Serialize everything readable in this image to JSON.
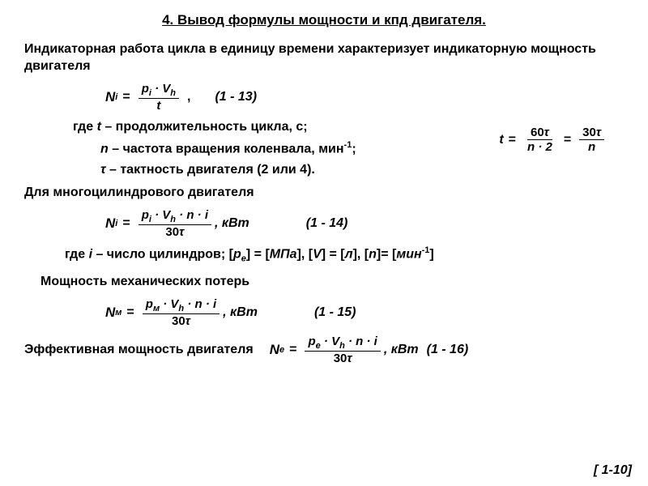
{
  "title": "4. Вывод формулы мощности и кпд двигателя.",
  "intro": "Индикаторная работа цикла в единицу времени характеризует индикаторную мощность двигателя",
  "eq1": {
    "lhs": "N",
    "lhs_sub": "i",
    "num": "p<sub class='sub it'>i</sub> · V<sub class='sub it'>h</sub>",
    "den": "t",
    "label": "(1 - 13)"
  },
  "where_t": "где <span class='it'>t</span> – продолжительность цикла, с;",
  "where_n": "<span class='it'>n</span> – частота вращения коленвала, мин<span class='sup'>-1</span>;",
  "where_tau": "<span class='it'>τ</span> – тактность двигателя (2 или 4).",
  "side": {
    "lhs": "t",
    "num1": "60<span class='it'>τ</span>",
    "den1": "n · 2",
    "num2": "30<span class='it'>τ</span>",
    "den2": "n"
  },
  "multi": "Для многоцилиндрового двигателя",
  "eq2": {
    "lhs": "N",
    "lhs_sub": "i",
    "num": "p<sub class='sub it'>i</sub> · V<sub class='sub it'>h</sub> · n · i",
    "den": "30<span class='it'>τ</span>",
    "unit": ", кВт",
    "label": "(1 - 14)"
  },
  "where_i": "где <span class='it'>i</span> – число цилиндров; [<span class='it'>p</span><sub class='sub it'>e</sub>] = [<span class='it'>МПа</span>], [<span class='it'>V</span>] = [<span class='it'>л</span>], [<span class='it'>n</span>]= [<span class='it'>мин</span><span class='sup'>-1</span>]",
  "mech": "Мощность механических потерь",
  "eq3": {
    "lhs": "N",
    "lhs_sub": "м",
    "num": "p<sub class='sub it'>м</sub> · V<sub class='sub it'>h</sub> · n · i",
    "den": "30<span class='it'>τ</span>",
    "unit": ", кВт",
    "label": "(1 - 15)"
  },
  "eff_label": "Эффективная мощность двигателя",
  "eq4": {
    "lhs": "N",
    "lhs_sub": "e",
    "num": "p<sub class='sub it'>e</sub> · V<sub class='sub it'>h</sub> · n · i",
    "den": "30<span class='it'>τ</span>",
    "unit": ", кВт",
    "label": "(1 - 16)"
  },
  "pagefoot": "[ 1-10]"
}
